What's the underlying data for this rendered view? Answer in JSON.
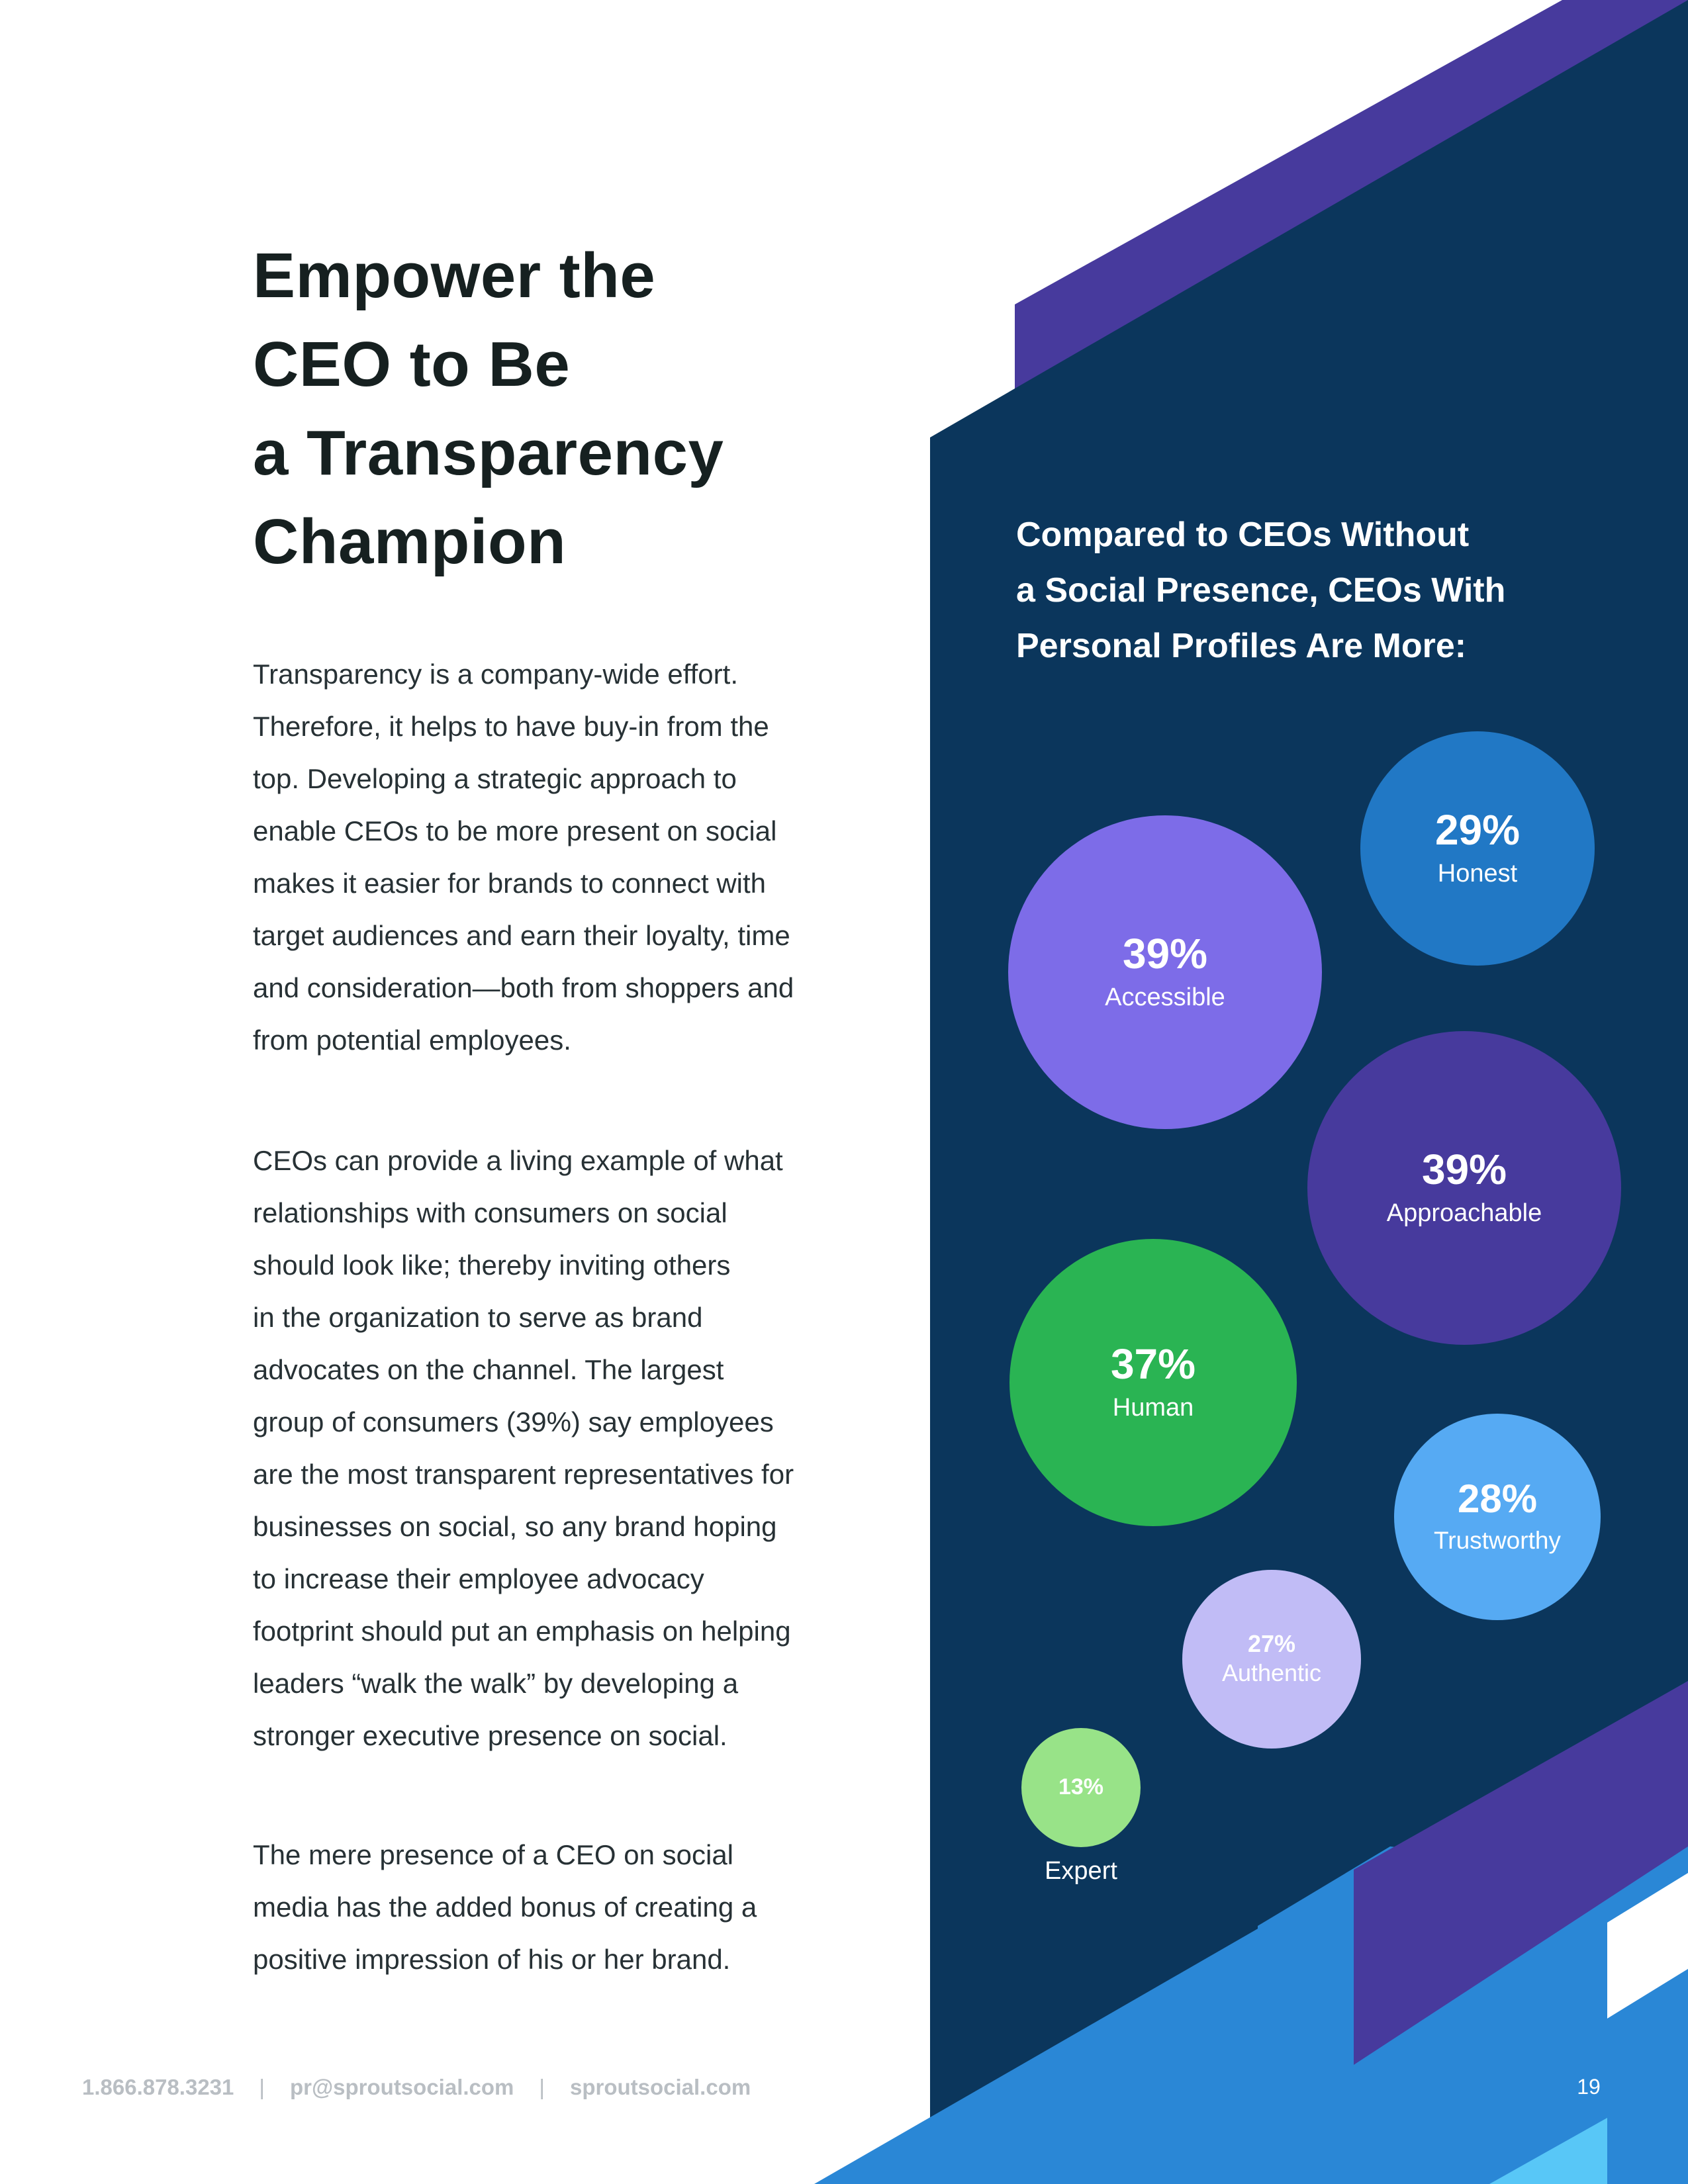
{
  "title_lines": [
    "Empower the",
    "CEO to Be",
    "a Transparency",
    "Champion"
  ],
  "paragraph_1_lines": [
    "Transparency is a company-wide effort.",
    "Therefore, it helps to have buy-in from the",
    "top. Developing a strategic approach to",
    "enable CEOs to be more present on social",
    "makes it easier for brands to connect with",
    "target audiences and earn their loyalty, time",
    "and consideration—both from shoppers and",
    "from potential employees."
  ],
  "paragraph_2_lines": [
    "CEOs can provide a living example of what",
    "relationships with consumers on social",
    "should look like; thereby inviting others",
    "in the organization to serve as brand",
    "advocates on the channel. The largest",
    "group of consumers (39%) say employees",
    "are the most transparent representatives for",
    "businesses on social, so any brand hoping",
    "to increase their employee advocacy",
    "footprint should put an emphasis on helping",
    "leaders “walk the walk” by developing a",
    "stronger executive presence on social."
  ],
  "paragraph_3_lines": [
    "The mere presence of a CEO on social",
    "media has the added bonus of creating a",
    "positive impression of his or her brand."
  ],
  "panel": {
    "heading_lines": [
      "Compared to CEOs Without",
      "a Social Presence, CEOs With",
      "Personal Profiles Are More:"
    ],
    "stats": [
      {
        "value": "29%",
        "label": "Honest",
        "color": "#2178c5"
      },
      {
        "value": "39%",
        "label": "Accessible",
        "color": "#7d6ce8"
      },
      {
        "value": "39%",
        "label": "Approachable",
        "color": "#473a9d"
      },
      {
        "value": "37%",
        "label": "Human",
        "color": "#2ab453"
      },
      {
        "value": "28%",
        "label": "Trustworthy",
        "color": "#56aaf3"
      },
      {
        "value": "27%",
        "label": "Authentic",
        "color": "#c1bcf6"
      },
      {
        "value": "13%",
        "label": "Expert",
        "color": "#98e388"
      }
    ]
  },
  "footer": {
    "phone": "1.866.878.3231",
    "separator": "|",
    "email": "pr@sproutsocial.com",
    "website": "sproutsocial.com"
  },
  "page_number": "19",
  "colors": {
    "navy": "#0b365c",
    "purple": "#473a9d",
    "blue": "#2a87d6",
    "cyan": "#58c7f7",
    "heading_text": "#162020",
    "body_text": "#273135"
  }
}
